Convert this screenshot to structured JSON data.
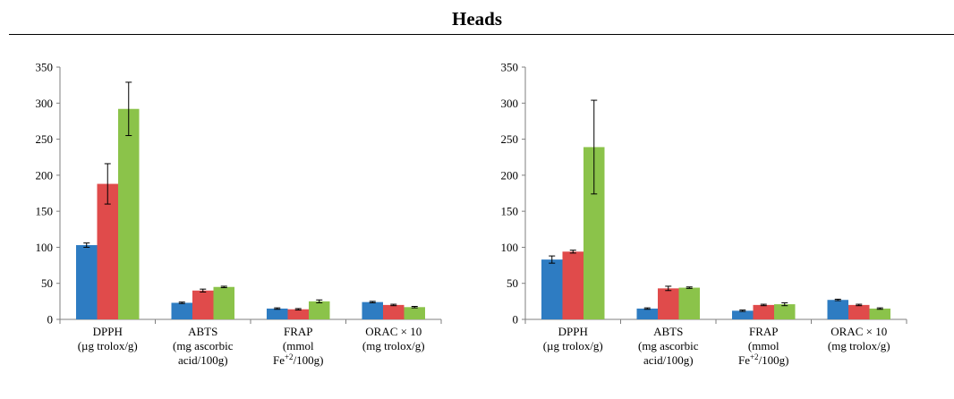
{
  "figure": {
    "title": "Heads"
  },
  "colors": {
    "series1": "#2E7CC2",
    "series2": "#E04B4B",
    "series3": "#8BC34A"
  },
  "chart_data": [
    {
      "type": "bar",
      "categories": [
        [
          "DPPH",
          "(µg trolox/g)"
        ],
        [
          "ABTS",
          "(mg ascorbic",
          "acid/100g)"
        ],
        [
          "FRAP",
          "(mmol",
          "Fe+2/100g)"
        ],
        [
          "ORAC × 10",
          "(mg trolox/g)"
        ]
      ],
      "series": [
        {
          "values": [
            103,
            23,
            15,
            24
          ],
          "errors": [
            3,
            1,
            1,
            1
          ]
        },
        {
          "values": [
            188,
            40,
            14,
            20
          ],
          "errors": [
            28,
            2,
            1,
            1
          ]
        },
        {
          "values": [
            292,
            45,
            25,
            17
          ],
          "errors": [
            37,
            1,
            2,
            1
          ]
        }
      ],
      "ylim": [
        0,
        350
      ],
      "yticks": [
        0,
        50,
        100,
        150,
        200,
        250,
        300,
        350
      ],
      "grid": false,
      "legend": "none"
    },
    {
      "type": "bar",
      "categories": [
        [
          "DPPH",
          "(µg trolox/g)"
        ],
        [
          "ABTS",
          "(mg ascorbic",
          "acid/100g)"
        ],
        [
          "FRAP",
          "(mmol",
          "Fe+2/100g)"
        ],
        [
          "ORAC × 10",
          "(mg trolox/g)"
        ]
      ],
      "series": [
        {
          "values": [
            83,
            15,
            12,
            27
          ],
          "errors": [
            5,
            1,
            1,
            1
          ]
        },
        {
          "values": [
            94,
            43,
            20,
            20
          ],
          "errors": [
            2,
            3,
            1,
            1
          ]
        },
        {
          "values": [
            239,
            44,
            21,
            15
          ],
          "errors": [
            65,
            1,
            2,
            1
          ]
        }
      ],
      "ylim": [
        0,
        350
      ],
      "yticks": [
        0,
        50,
        100,
        150,
        200,
        250,
        300,
        350
      ],
      "grid": false,
      "legend": "none"
    }
  ]
}
